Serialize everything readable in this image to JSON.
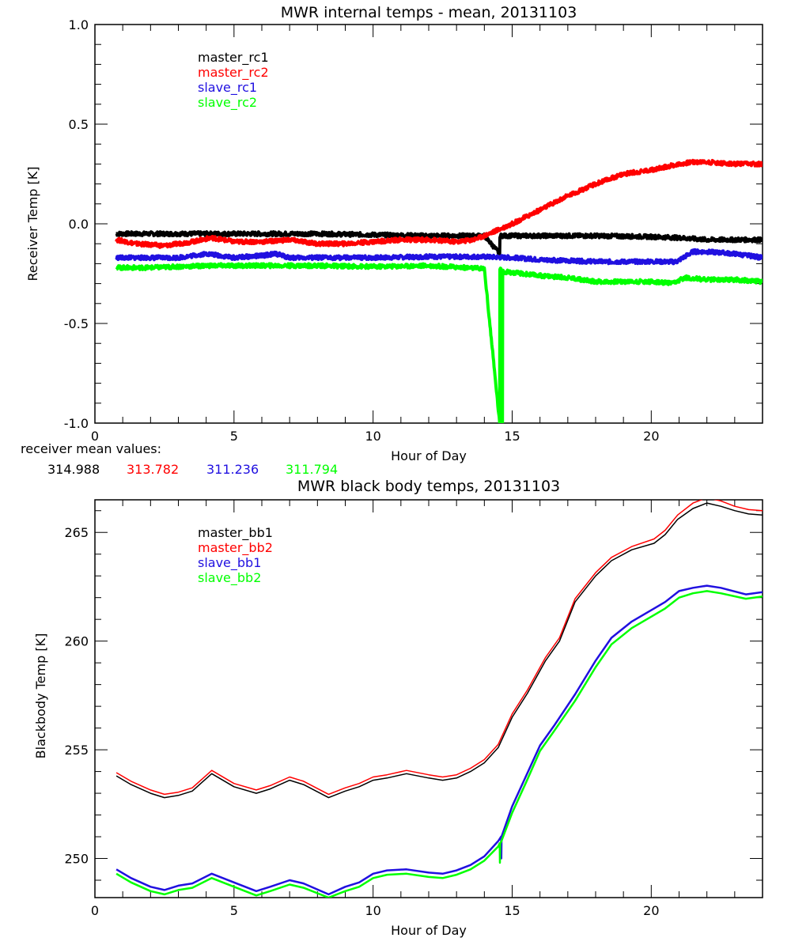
{
  "chart_data": [
    {
      "type": "line",
      "title": "MWR internal temps - mean, 20131103",
      "xlabel": "Hour of Day",
      "ylabel": "Receiver Temp [K]",
      "xlim": [
        0,
        24
      ],
      "ylim": [
        -1.0,
        1.0
      ],
      "xticks": [
        0,
        5,
        10,
        15,
        20
      ],
      "xtick_labels": [
        "0",
        "5",
        "10",
        "15",
        "20"
      ],
      "yticks": [
        -1.0,
        -0.5,
        0.0,
        0.5,
        1.0
      ],
      "ytick_labels": [
        "-1.0",
        "-0.5",
        "0.0",
        "0.5",
        "1.0"
      ],
      "legend_position": "top-left",
      "grid": false,
      "series": [
        {
          "name": "master_rc1",
          "color": "#000000",
          "x": [
            0.77,
            2,
            4,
            6,
            8,
            10,
            12,
            14,
            14.55,
            14.56,
            14.6,
            16,
            18,
            20,
            21,
            22,
            24
          ],
          "y": [
            -0.05,
            -0.05,
            -0.05,
            -0.05,
            -0.05,
            -0.055,
            -0.06,
            -0.06,
            -0.15,
            -0.06,
            -0.06,
            -0.06,
            -0.06,
            -0.065,
            -0.07,
            -0.08,
            -0.08
          ]
        },
        {
          "name": "master_rc2",
          "color": "#ff0000",
          "x": [
            0.77,
            1.5,
            2.5,
            3.5,
            4.2,
            5,
            6,
            7,
            8,
            9,
            10,
            11,
            12,
            13,
            13.6,
            14,
            14.5,
            15,
            16,
            17,
            18,
            19,
            20,
            21,
            21.5,
            22,
            23,
            24
          ],
          "y": [
            -0.08,
            -0.1,
            -0.11,
            -0.09,
            -0.07,
            -0.09,
            -0.09,
            -0.08,
            -0.1,
            -0.1,
            -0.09,
            -0.08,
            -0.08,
            -0.09,
            -0.08,
            -0.06,
            -0.03,
            0.0,
            0.07,
            0.14,
            0.2,
            0.25,
            0.27,
            0.3,
            0.31,
            0.31,
            0.3,
            0.3
          ]
        },
        {
          "name": "slave_rc1",
          "color": "#2010e0",
          "x": [
            0.77,
            2,
            3,
            4,
            5,
            6,
            6.5,
            7,
            8,
            10,
            12,
            14,
            15,
            16,
            18,
            20,
            20.9,
            21.5,
            22,
            23,
            24
          ],
          "y": [
            -0.17,
            -0.17,
            -0.17,
            -0.15,
            -0.17,
            -0.16,
            -0.15,
            -0.17,
            -0.17,
            -0.17,
            -0.165,
            -0.165,
            -0.17,
            -0.18,
            -0.19,
            -0.19,
            -0.19,
            -0.14,
            -0.14,
            -0.15,
            -0.17
          ]
        },
        {
          "name": "slave_rc2",
          "color": "#00ff00",
          "x": [
            0.77,
            2,
            4,
            6,
            8,
            10,
            12,
            14,
            14.55,
            14.56,
            14.6,
            14.65,
            14.66,
            14.7,
            16,
            17,
            18,
            19,
            20,
            20.8,
            21.2,
            22,
            23,
            24
          ],
          "y": [
            -0.22,
            -0.22,
            -0.21,
            -0.21,
            -0.21,
            -0.215,
            -0.21,
            -0.225,
            -1.0,
            -0.23,
            -0.23,
            -1.0,
            -0.23,
            -0.24,
            -0.26,
            -0.27,
            -0.29,
            -0.29,
            -0.29,
            -0.3,
            -0.27,
            -0.28,
            -0.28,
            -0.29
          ]
        }
      ],
      "annotations": {
        "label": "receiver mean values:",
        "values": [
          {
            "text": "314.988",
            "color": "#000000"
          },
          {
            "text": "313.782",
            "color": "#ff0000"
          },
          {
            "text": "311.236",
            "color": "#2010e0"
          },
          {
            "text": "311.794",
            "color": "#00ff00"
          }
        ]
      }
    },
    {
      "type": "line",
      "title": "MWR black body temps, 20131103",
      "xlabel": "Hour of Day",
      "ylabel": "Blackbody Temp [K]",
      "xlim": [
        0,
        24
      ],
      "ylim": [
        248.2,
        266.5
      ],
      "xticks": [
        0,
        5,
        10,
        15,
        20
      ],
      "xtick_labels": [
        "0",
        "5",
        "10",
        "15",
        "20"
      ],
      "yticks": [
        250,
        255,
        260,
        265
      ],
      "ytick_labels": [
        "250",
        "255",
        "260",
        "265"
      ],
      "legend_position": "top-left",
      "grid": false,
      "series": [
        {
          "name": "master_bb1",
          "color": "#000000",
          "x": [
            0.77,
            1.3,
            2,
            2.5,
            3,
            3.5,
            4.2,
            5,
            5.8,
            6.3,
            7,
            7.5,
            8.4,
            9,
            9.5,
            10,
            10.5,
            11.2,
            12,
            12.5,
            13,
            13.5,
            14,
            14.5,
            15,
            15.55,
            16.2,
            16.7,
            17.26,
            18,
            18.57,
            19.3,
            20.1,
            20.5,
            20.95,
            21.5,
            22,
            22.5,
            23,
            23.5,
            24
          ],
          "y": [
            253.8,
            253.4,
            253.0,
            252.8,
            252.9,
            253.1,
            253.9,
            253.3,
            253.0,
            253.2,
            253.6,
            253.4,
            252.8,
            253.1,
            253.3,
            253.6,
            253.7,
            253.9,
            253.7,
            253.6,
            253.7,
            254.0,
            254.4,
            255.1,
            256.5,
            257.6,
            259.1,
            260.0,
            261.8,
            263.0,
            263.7,
            264.2,
            264.5,
            264.9,
            265.6,
            266.1,
            266.35,
            266.2,
            266.0,
            265.85,
            265.8
          ]
        },
        {
          "name": "master_bb2",
          "color": "#ff0000",
          "x": [
            0.77,
            1.3,
            2,
            2.5,
            3,
            3.5,
            4.2,
            5,
            5.8,
            6.3,
            7,
            7.5,
            8.4,
            9,
            9.5,
            10,
            10.5,
            11.2,
            12,
            12.5,
            13,
            13.5,
            14,
            14.5,
            15,
            15.55,
            16.2,
            16.7,
            17.26,
            18,
            18.57,
            19.3,
            20.1,
            20.5,
            20.95,
            21.5,
            22,
            22.5,
            23,
            23.5,
            24
          ],
          "y": [
            253.95,
            253.55,
            253.15,
            252.95,
            253.05,
            253.25,
            254.05,
            253.45,
            253.15,
            253.35,
            253.75,
            253.55,
            252.95,
            253.25,
            253.45,
            253.75,
            253.85,
            254.05,
            253.85,
            253.75,
            253.85,
            254.15,
            254.55,
            255.25,
            256.65,
            257.75,
            259.25,
            260.15,
            261.95,
            263.15,
            263.85,
            264.35,
            264.7,
            265.1,
            265.8,
            266.35,
            266.6,
            266.45,
            266.2,
            266.05,
            266.0
          ]
        },
        {
          "name": "slave_bb1",
          "color": "#2010e0",
          "x": [
            0.77,
            1.3,
            2,
            2.5,
            3,
            3.5,
            4.2,
            5,
            5.8,
            6.3,
            7,
            7.5,
            8.4,
            9,
            9.5,
            10,
            10.5,
            11.2,
            12,
            12.5,
            13,
            13.5,
            14,
            14.5,
            14.6,
            14.61,
            14.62,
            14.63,
            15,
            15.5,
            16,
            16.5,
            17.26,
            18,
            18.57,
            19.3,
            20.1,
            20.5,
            21.0,
            21.5,
            22,
            22.5,
            23.4,
            24
          ],
          "y": [
            249.5,
            249.1,
            248.7,
            248.55,
            248.75,
            248.85,
            249.3,
            248.9,
            248.5,
            248.7,
            249.0,
            248.85,
            248.35,
            248.7,
            248.9,
            249.3,
            249.45,
            249.5,
            249.35,
            249.3,
            249.45,
            249.7,
            250.1,
            250.8,
            251.0,
            250.0,
            251.0,
            251.05,
            252.4,
            253.8,
            255.2,
            256.1,
            257.55,
            259.1,
            260.15,
            260.9,
            261.5,
            261.8,
            262.3,
            262.45,
            262.55,
            262.45,
            262.15,
            262.25
          ]
        },
        {
          "name": "slave_bb2",
          "color": "#00ff00",
          "x": [
            0.77,
            1.3,
            2,
            2.5,
            3,
            3.5,
            4.2,
            5,
            5.8,
            6.3,
            7,
            7.5,
            8.4,
            9,
            9.5,
            10,
            10.5,
            11.2,
            12,
            12.5,
            13,
            13.5,
            14,
            14.5,
            14.55,
            14.56,
            14.57,
            14.6,
            15,
            15.5,
            16,
            16.5,
            17.26,
            18,
            18.57,
            19.3,
            20.1,
            20.5,
            21.0,
            21.5,
            22,
            22.5,
            23.4,
            24
          ],
          "y": [
            249.3,
            248.9,
            248.5,
            248.35,
            248.55,
            248.65,
            249.1,
            248.7,
            248.3,
            248.5,
            248.8,
            248.65,
            248.2,
            248.5,
            248.7,
            249.1,
            249.25,
            249.3,
            249.15,
            249.1,
            249.25,
            249.5,
            249.9,
            250.55,
            250.7,
            249.8,
            250.7,
            250.75,
            252.1,
            253.5,
            254.95,
            255.85,
            257.25,
            258.8,
            259.85,
            260.6,
            261.2,
            261.5,
            262.0,
            262.2,
            262.3,
            262.2,
            261.95,
            262.05
          ]
        }
      ]
    }
  ]
}
